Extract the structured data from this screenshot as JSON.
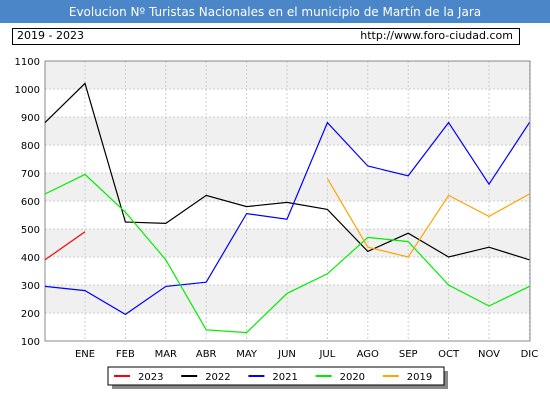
{
  "header": {
    "title": "Evolucion Nº Turistas Nacionales en el municipio de Martín de la Jara",
    "period": "2019 - 2023",
    "url": "http://www.foro-ciudad.com"
  },
  "chart_data": {
    "type": "line",
    "title": "Evolucion Nº Turistas Nacionales en el municipio de Martín de la Jara",
    "categories": [
      "ENE",
      "FEB",
      "MAR",
      "ABR",
      "MAY",
      "JUN",
      "JUL",
      "AGO",
      "SEP",
      "OCT",
      "NOV",
      "DIC"
    ],
    "ylim": [
      100,
      1100
    ],
    "yticks": [
      100,
      200,
      300,
      400,
      500,
      600,
      700,
      800,
      900,
      1000,
      1100
    ],
    "grid": true,
    "legend_position": "bottom",
    "series": [
      {
        "name": "2023",
        "color": "#ff0000",
        "values": [
          490,
          null,
          null,
          null,
          null,
          null,
          null,
          null,
          null,
          null,
          null,
          null
        ],
        "lead_in": 390
      },
      {
        "name": "2022",
        "color": "#000000",
        "values": [
          1020,
          525,
          520,
          620,
          580,
          595,
          570,
          420,
          485,
          400,
          435,
          390
        ],
        "lead_in": 880
      },
      {
        "name": "2021",
        "color": "#0000ff",
        "values": [
          280,
          195,
          295,
          310,
          555,
          535,
          880,
          725,
          690,
          880,
          660,
          880
        ],
        "lead_in": 295
      },
      {
        "name": "2020",
        "color": "#00ee00",
        "values": [
          695,
          560,
          390,
          140,
          130,
          270,
          340,
          470,
          455,
          300,
          225,
          295
        ],
        "lead_in": 625
      },
      {
        "name": "2019",
        "color": "#ffa500",
        "values": [
          null,
          null,
          null,
          null,
          null,
          null,
          680,
          435,
          400,
          620,
          545,
          625
        ]
      }
    ]
  }
}
